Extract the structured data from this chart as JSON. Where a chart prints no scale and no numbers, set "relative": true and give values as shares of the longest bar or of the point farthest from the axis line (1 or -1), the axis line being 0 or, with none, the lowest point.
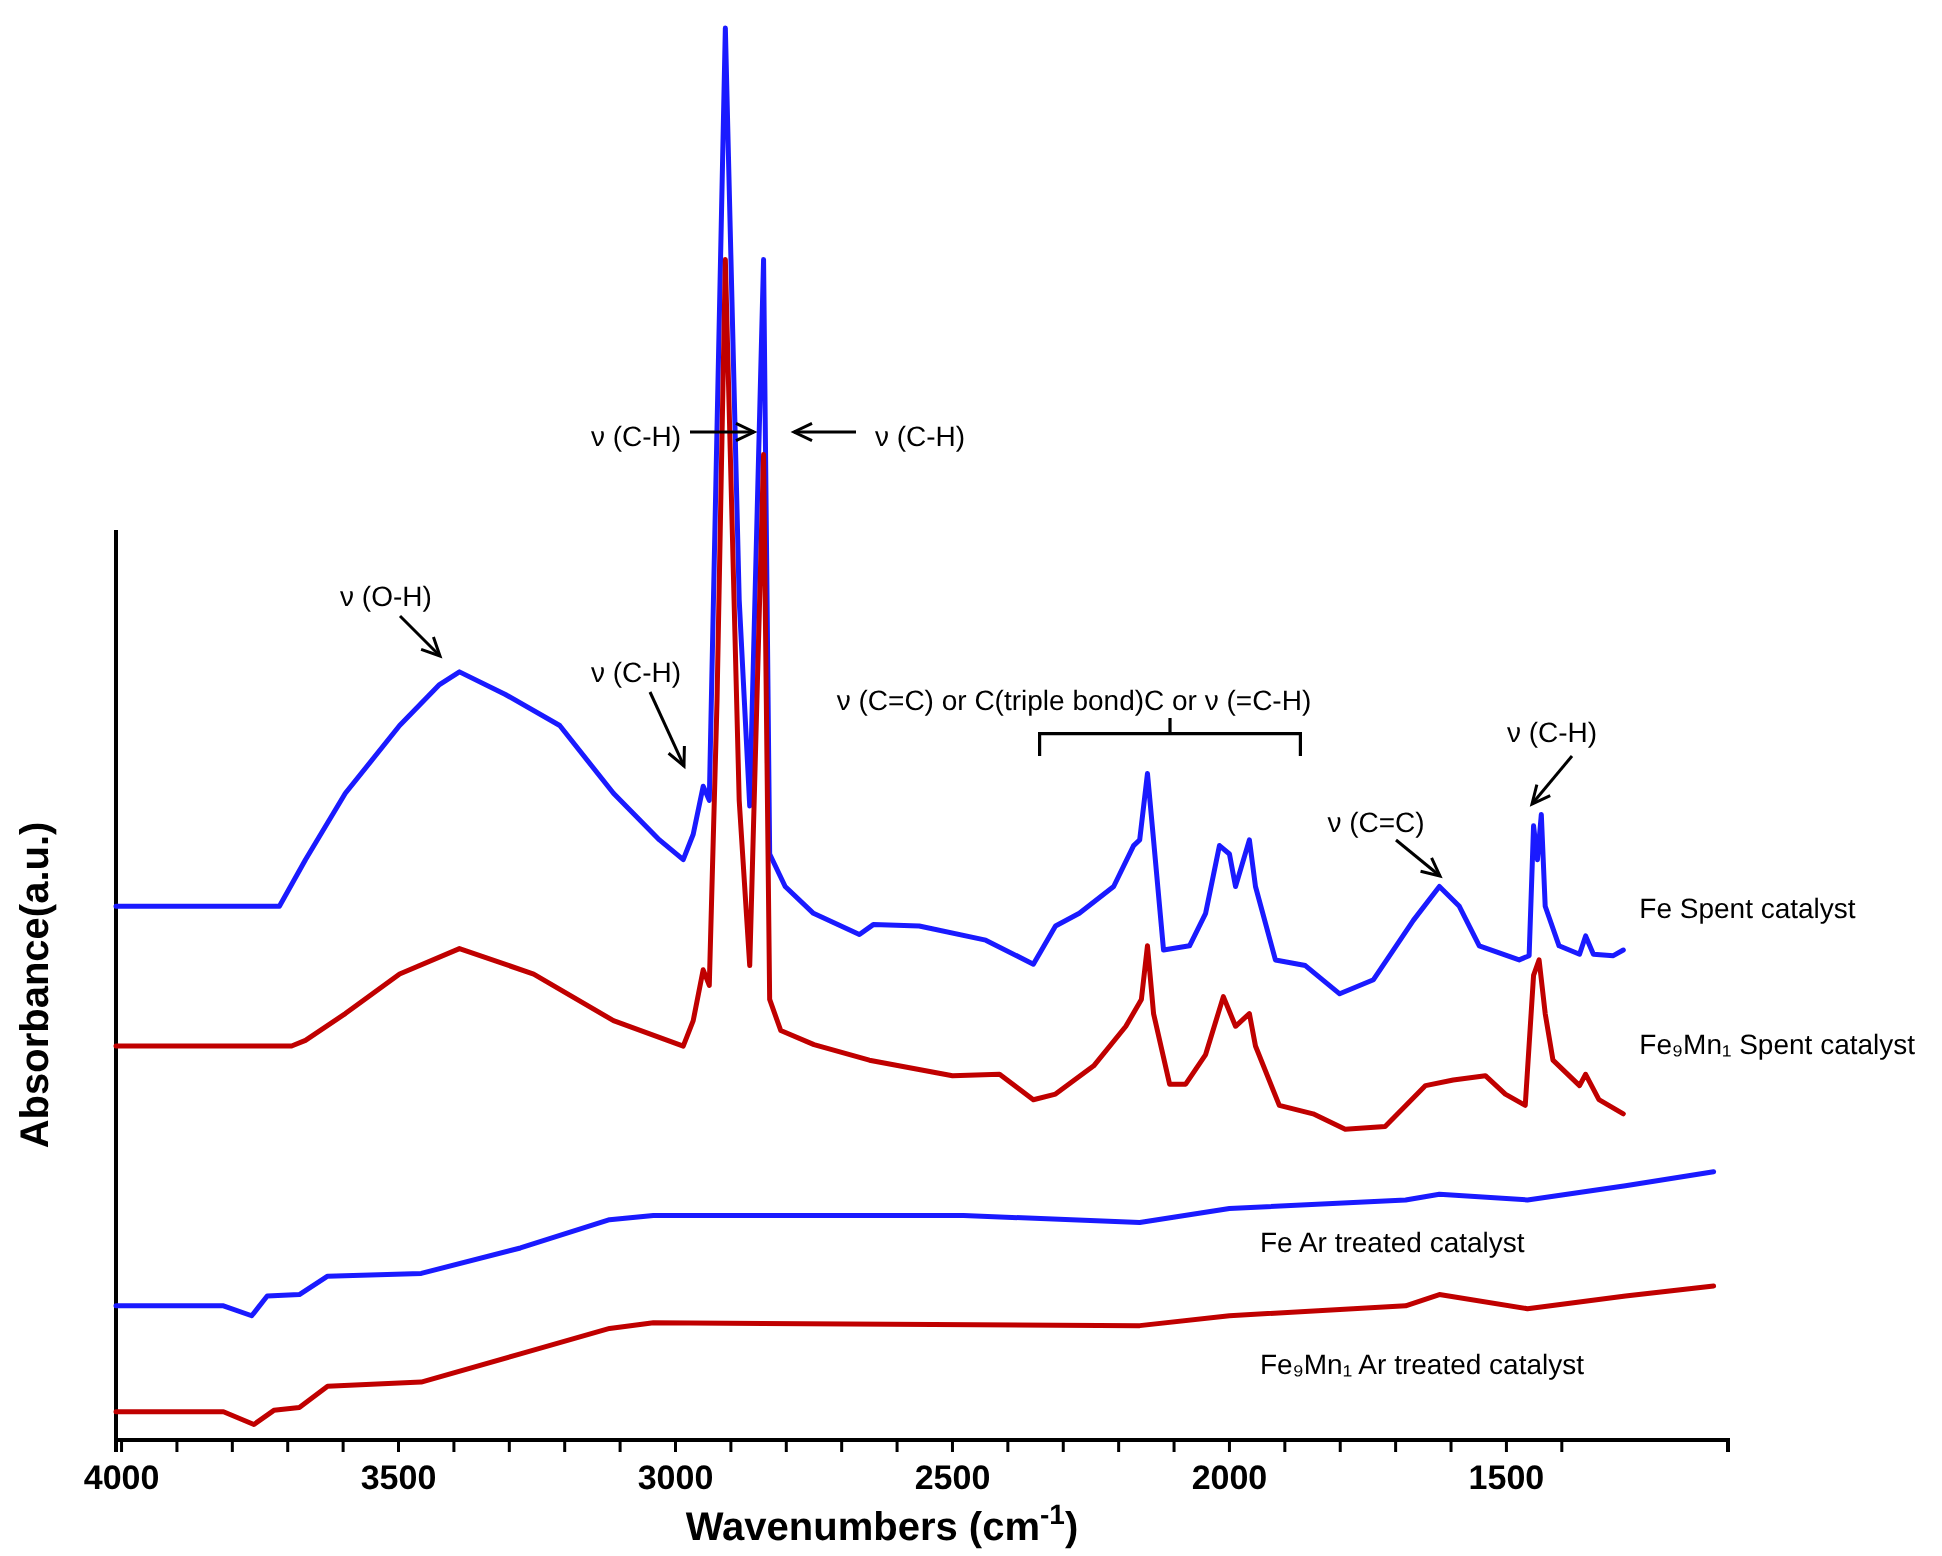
{
  "chart_data": {
    "type": "line",
    "relative": true,
    "xlabel": "Wavenumbers (cm$^{-1}$)",
    "ylabel": "Absorbance(a.u.)",
    "xlim": [
      4010,
      1100
    ],
    "xticks": [
      4000,
      {
        "value": 3900,
        "label": null
      },
      {
        "value": 3800,
        "label": null
      },
      {
        "value": 3700,
        "label": null
      },
      {
        "value": 3600,
        "label": null
      },
      3500,
      {
        "value": 3400,
        "label": null
      },
      {
        "value": 3300,
        "label": null
      },
      {
        "value": 3200,
        "label": null
      },
      {
        "value": 3100,
        "label": null
      },
      3000,
      {
        "value": 2900,
        "label": null
      },
      {
        "value": 2800,
        "label": null
      },
      {
        "value": 2700,
        "label": null
      },
      {
        "value": 2600,
        "label": null
      },
      2500,
      {
        "value": 2400,
        "label": null
      },
      {
        "value": 2300,
        "label": null
      },
      {
        "value": 2200,
        "label": null
      },
      {
        "value": 2100,
        "label": null
      },
      2000,
      {
        "value": 1900,
        "label": null
      },
      {
        "value": 1800,
        "label": null
      },
      {
        "value": 1700,
        "label": null
      },
      {
        "value": 1600,
        "label": null
      },
      1500,
      {
        "value": 1400,
        "label": null
      }
    ],
    "grid": false,
    "marker": "none",
    "line_style": "solid",
    "series": [
      {
        "name": "Fe Spent catalyst",
        "color": "#1a1aff",
        "x": [
          4010,
          3715,
          3668,
          3596,
          3498,
          3426,
          3390,
          3307,
          3209,
          3112,
          3029,
          2986,
          2968,
          2950,
          2939,
          2910,
          2885,
          2866,
          2841,
          2830,
          2802,
          2751,
          2668,
          2643,
          2560,
          2440,
          2354,
          2314,
          2271,
          2209,
          2173,
          2162,
          2148,
          2137,
          2119,
          2072,
          2043,
          2018,
          2000,
          1989,
          1964,
          1953,
          1917,
          1863,
          1801,
          1740,
          1668,
          1621,
          1585,
          1549,
          1477,
          1459,
          1451,
          1444,
          1437,
          1430,
          1405,
          1368,
          1357,
          1343,
          1307,
          1289
        ],
        "values": [
          0.378,
          0.378,
          0.411,
          0.458,
          0.506,
          0.535,
          0.544,
          0.528,
          0.506,
          0.458,
          0.425,
          0.411,
          0.429,
          0.463,
          0.453,
          1.0,
          0.595,
          0.449,
          0.836,
          0.415,
          0.392,
          0.373,
          0.358,
          0.365,
          0.364,
          0.354,
          0.337,
          0.364,
          0.373,
          0.392,
          0.421,
          0.425,
          0.472,
          0.425,
          0.347,
          0.35,
          0.373,
          0.421,
          0.415,
          0.392,
          0.425,
          0.392,
          0.34,
          0.336,
          0.316,
          0.326,
          0.368,
          0.392,
          0.378,
          0.35,
          0.34,
          0.343,
          0.435,
          0.411,
          0.443,
          0.378,
          0.35,
          0.344,
          0.357,
          0.344,
          0.343,
          0.347
        ]
      },
      {
        "name": "Fe₉Mn₁ Spent catalyst",
        "color": "#c00000",
        "x": [
          4010,
          3693,
          3668,
          3596,
          3498,
          3390,
          3256,
          3112,
          2986,
          2968,
          2950,
          2939,
          2925,
          2910,
          2885,
          2866,
          2841,
          2830,
          2810,
          2750,
          2650,
          2500,
          2415,
          2354,
          2314,
          2245,
          2187,
          2159,
          2148,
          2137,
          2108,
          2079,
          2043,
          2011,
          1989,
          1964,
          1953,
          1910,
          1849,
          1791,
          1719,
          1646,
          1596,
          1538,
          1502,
          1466,
          1451,
          1441,
          1430,
          1416,
          1368,
          1357,
          1333,
          1289
        ],
        "values": [
          0.279,
          0.279,
          0.283,
          0.302,
          0.33,
          0.348,
          0.33,
          0.297,
          0.279,
          0.297,
          0.333,
          0.322,
          0.524,
          0.836,
          0.453,
          0.336,
          0.698,
          0.312,
          0.29,
          0.28,
          0.269,
          0.258,
          0.259,
          0.241,
          0.245,
          0.265,
          0.293,
          0.312,
          0.35,
          0.302,
          0.252,
          0.252,
          0.273,
          0.314,
          0.293,
          0.302,
          0.279,
          0.237,
          0.231,
          0.22,
          0.222,
          0.251,
          0.255,
          0.258,
          0.245,
          0.237,
          0.329,
          0.34,
          0.302,
          0.269,
          0.251,
          0.259,
          0.241,
          0.231
        ]
      },
      {
        "name": "Fe Ar treated catalyst",
        "color": "#1a1aff",
        "x": [
          4010,
          3816,
          3765,
          3737,
          3679,
          3628,
          3459,
          3280,
          3119,
          3040,
          2480,
          2162,
          2000,
          1682,
          1621,
          1462,
          1285,
          1126
        ],
        "values": [
          0.095,
          0.095,
          0.088,
          0.102,
          0.103,
          0.116,
          0.118,
          0.136,
          0.156,
          0.159,
          0.159,
          0.154,
          0.164,
          0.17,
          0.174,
          0.17,
          0.18,
          0.19
        ]
      },
      {
        "name": "Fe₉Mn₁ Ar treated catalyst",
        "color": "#c00000",
        "x": [
          4010,
          3816,
          3761,
          3725,
          3679,
          3628,
          3459,
          3280,
          3119,
          3040,
          2162,
          2000,
          1682,
          1621,
          1462,
          1285,
          1126
        ],
        "values": [
          0.02,
          0.02,
          0.011,
          0.021,
          0.023,
          0.038,
          0.041,
          0.061,
          0.079,
          0.083,
          0.081,
          0.088,
          0.095,
          0.103,
          0.093,
          0.102,
          0.109
        ]
      }
    ],
    "annotations": [
      "ν (O-H)",
      "ν (C-H)",
      "ν (C-H)",
      "ν (C-H)",
      "ν (C=C)  or C(triple bond)C   or  ν (=C-H)",
      "ν (C=C)",
      "ν (C-H)"
    ]
  }
}
